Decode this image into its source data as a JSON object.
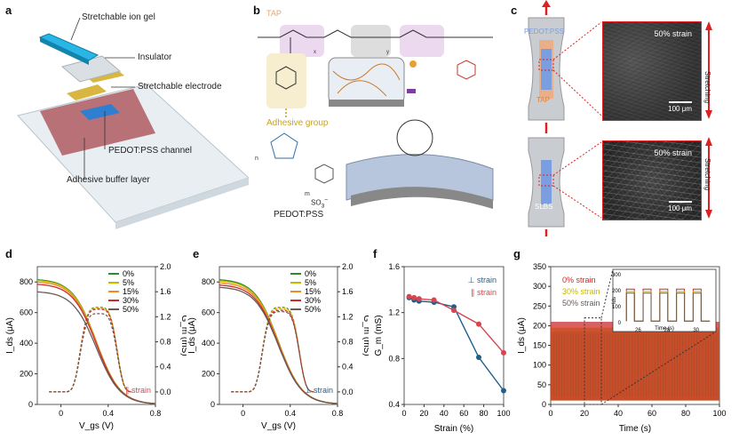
{
  "panels": {
    "a": {
      "letter": "a",
      "labels": {
        "ion_gel": "Stretchable ion gel",
        "insulator": "Insulator",
        "electrode": "Stretchable electrode",
        "channel": "PEDOT:PSS channel",
        "buffer": "Adhesive buffer layer"
      }
    },
    "b": {
      "letter": "b",
      "tap_title": "TAP",
      "adhesive_group": "Adhesive group",
      "pedot_label": "PEDOT:PSS",
      "subscripts": {
        "x": "x",
        "y": "y",
        "m": "m",
        "n": "n"
      },
      "so3": "SO",
      "so3_sub": "3",
      "so3_sup": "−"
    },
    "c": {
      "letter": "c",
      "top_label_a": "PEDOT:PSS",
      "top_label_b": "TAP",
      "bottom_label": "SLBS",
      "top_micro_tag": "50% strain",
      "bottom_micro_tag": "50% strain",
      "scale_bar": "100 μm",
      "stretching_top": "Stretching",
      "stretching_bottom": "Stretching"
    },
    "d": {
      "letter": "d",
      "legend_note": "∥ strain"
    },
    "e": {
      "letter": "e",
      "legend_note": "⊥ strain"
    },
    "f": {
      "letter": "f"
    },
    "g": {
      "letter": "g",
      "inset_xlabel": "Time (s)",
      "inset_ylabel": "Ids"
    }
  },
  "colors": {
    "s0": "#2e8b2e",
    "s5": "#c9b800",
    "s15": "#f08a24",
    "s30": "#cc2b2b",
    "s50": "#6b5a55",
    "perp": "#1f5f8b",
    "para": "#d64550",
    "accent_red": "#e02020"
  },
  "chart_data": [
    {
      "id": "d",
      "type": "line",
      "title": "",
      "xlabel": "V_gs (V)",
      "ylabel": "I_ds (μA)",
      "y2label": "G_m (mS)",
      "xlim": [
        -0.2,
        0.8
      ],
      "ylim": [
        0,
        900
      ],
      "y2lim": [
        -0.2,
        2.0
      ],
      "xticks": [
        0,
        0.4,
        0.8
      ],
      "yticks": [
        0,
        200,
        400,
        600,
        800
      ],
      "y2ticks": [
        0,
        0.4,
        0.8,
        1.2,
        1.6,
        2.0
      ],
      "series": [
        {
          "name": "0%",
          "ids_start": 820,
          "gm_peak": 1.35
        },
        {
          "name": "5%",
          "ids_start": 815,
          "gm_peak": 1.34
        },
        {
          "name": "15%",
          "ids_start": 805,
          "gm_peak": 1.33
        },
        {
          "name": "30%",
          "ids_start": 790,
          "gm_peak": 1.32
        },
        {
          "name": "50%",
          "ids_start": 740,
          "gm_peak": 1.25
        }
      ]
    },
    {
      "id": "e",
      "type": "line",
      "title": "",
      "xlabel": "V_gs (V)",
      "ylabel": "I_ds (μA)",
      "y2label": "G_m (mS)",
      "xlim": [
        -0.2,
        0.8
      ],
      "ylim": [
        0,
        900
      ],
      "y2lim": [
        -0.2,
        2.0
      ],
      "xticks": [
        0,
        0.4,
        0.8
      ],
      "yticks": [
        0,
        200,
        400,
        600,
        800
      ],
      "y2ticks": [
        0,
        0.4,
        0.8,
        1.2,
        1.6,
        2.0
      ],
      "series": [
        {
          "name": "0%",
          "ids_start": 820,
          "gm_peak": 1.35
        },
        {
          "name": "5%",
          "ids_start": 812,
          "gm_peak": 1.34
        },
        {
          "name": "15%",
          "ids_start": 800,
          "gm_peak": 1.32
        },
        {
          "name": "30%",
          "ids_start": 785,
          "gm_peak": 1.3
        },
        {
          "name": "50%",
          "ids_start": 770,
          "gm_peak": 1.28
        }
      ]
    },
    {
      "id": "f",
      "type": "line",
      "xlabel": "Strain (%)",
      "ylabel": "G_m (mS)",
      "xlim": [
        0,
        100
      ],
      "ylim": [
        0.4,
        1.6
      ],
      "xticks": [
        0,
        20,
        40,
        60,
        80,
        100
      ],
      "yticks": [
        0.4,
        0.8,
        1.2,
        1.6
      ],
      "x": [
        5,
        10,
        15,
        30,
        50,
        75,
        100
      ],
      "series": [
        {
          "name": "⊥ strain",
          "values": [
            1.33,
            1.31,
            1.3,
            1.29,
            1.25,
            0.81,
            0.52
          ]
        },
        {
          "name": "∥ strain",
          "values": [
            1.34,
            1.33,
            1.32,
            1.31,
            1.22,
            1.1,
            0.85
          ]
        }
      ]
    },
    {
      "id": "g",
      "type": "line",
      "xlabel": "Time (s)",
      "ylabel": "I_ds (μA)",
      "xlim": [
        0,
        100
      ],
      "ylim": [
        0,
        350
      ],
      "xticks": [
        0,
        20,
        40,
        60,
        80,
        100
      ],
      "yticks": [
        0,
        50,
        100,
        150,
        200,
        250,
        300,
        350
      ],
      "series": [
        {
          "name": "0% strain",
          "high": 210,
          "low": 10
        },
        {
          "name": "30% strain",
          "high": 195,
          "low": 10
        },
        {
          "name": "50% strain",
          "high": 185,
          "low": 10
        }
      ],
      "inset": {
        "xticks": [
          26,
          28,
          30
        ],
        "yticks": [
          0,
          100,
          200,
          300
        ]
      }
    }
  ]
}
